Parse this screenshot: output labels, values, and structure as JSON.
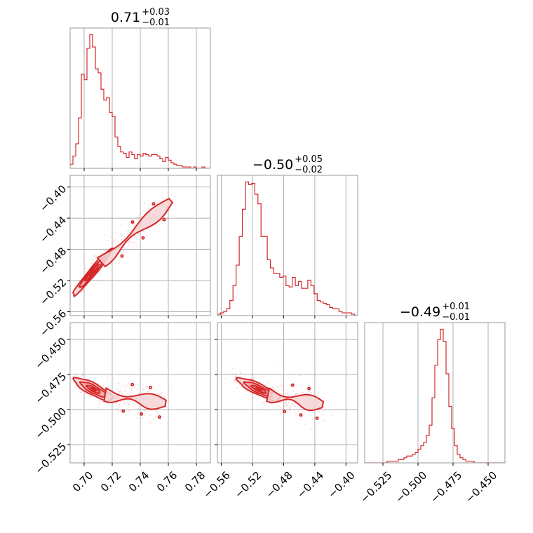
{
  "chart_data": {
    "type": "corner",
    "color": "#d62728",
    "fill_colors": [
      "#f6d4d5",
      "#eea7a9",
      "#e36d70"
    ],
    "grid": true,
    "parameters": [
      {
        "id": "p0",
        "median": "0.71",
        "plus": "+0.03",
        "minus": "−0.01",
        "range": [
          0.69,
          0.79
        ],
        "ticks": [
          0.7,
          0.72,
          0.74,
          0.76,
          0.78
        ],
        "tick_labels": [
          "0.70",
          "0.72",
          "0.74",
          "0.76",
          "0.78"
        ]
      },
      {
        "id": "p1",
        "median": "−0.50",
        "plus": "+0.05",
        "minus": "−0.02",
        "range": [
          -0.565,
          -0.385
        ],
        "ticks": [
          -0.56,
          -0.52,
          -0.48,
          -0.44,
          -0.4
        ],
        "tick_labels": [
          "−0.56",
          "−0.52",
          "−0.48",
          "−0.44",
          "−0.40"
        ]
      },
      {
        "id": "p2",
        "median": "−0.49",
        "plus": "+0.01",
        "minus": "−0.01",
        "range": [
          -0.538,
          -0.438
        ],
        "ticks": [
          -0.525,
          -0.5,
          -0.475,
          -0.45
        ],
        "tick_labels": [
          "−0.525",
          "−0.500",
          "−0.475",
          "−0.450"
        ]
      }
    ],
    "histograms": [
      {
        "param": "p0",
        "bins": [
          0.69,
          0.692,
          0.694,
          0.696,
          0.698,
          0.7,
          0.702,
          0.704,
          0.706,
          0.708,
          0.71,
          0.712,
          0.714,
          0.716,
          0.718,
          0.72,
          0.722,
          0.724,
          0.726,
          0.728,
          0.73,
          0.732,
          0.734,
          0.736,
          0.738,
          0.74,
          0.742,
          0.744,
          0.746,
          0.748,
          0.75,
          0.752,
          0.754,
          0.756,
          0.758,
          0.76,
          0.762,
          0.764,
          0.766,
          0.768,
          0.77,
          0.772,
          0.774,
          0.776,
          0.778,
          0.78,
          0.782,
          0.784,
          0.786,
          0.788,
          0.79
        ],
        "counts": [
          3,
          9,
          18,
          37,
          69,
          65,
          88,
          98,
          89,
          73,
          70,
          58,
          50,
          52,
          41,
          38,
          23,
          16,
          12,
          11,
          8,
          12,
          10,
          7,
          10,
          9,
          11,
          10,
          9,
          10,
          10,
          9,
          7,
          5,
          8,
          6,
          4,
          3,
          2,
          2,
          1,
          1,
          1,
          0,
          1,
          0,
          0,
          1,
          0,
          0
        ]
      },
      {
        "param": "p1",
        "bins": [
          -0.565,
          -0.561,
          -0.557,
          -0.553,
          -0.549,
          -0.545,
          -0.541,
          -0.537,
          -0.533,
          -0.529,
          -0.525,
          -0.521,
          -0.517,
          -0.513,
          -0.509,
          -0.505,
          -0.501,
          -0.497,
          -0.493,
          -0.489,
          -0.485,
          -0.481,
          -0.477,
          -0.473,
          -0.469,
          -0.465,
          -0.461,
          -0.457,
          -0.453,
          -0.449,
          -0.445,
          -0.441,
          -0.437,
          -0.433,
          -0.429,
          -0.425,
          -0.421,
          -0.417,
          -0.413,
          -0.409,
          -0.405,
          -0.401,
          -0.397,
          -0.393,
          -0.389,
          -0.385
        ],
        "counts": [
          1,
          2,
          3,
          5,
          11,
          22,
          37,
          58,
          78,
          98,
          96,
          97,
          89,
          82,
          58,
          58,
          41,
          35,
          31,
          31,
          28,
          29,
          22,
          21,
          28,
          22,
          25,
          20,
          20,
          26,
          22,
          16,
          11,
          10,
          9,
          8,
          6,
          5,
          5,
          3,
          2,
          2,
          2,
          1,
          0
        ]
      },
      {
        "param": "p2",
        "bins": [
          -0.538,
          -0.536,
          -0.534,
          -0.532,
          -0.53,
          -0.528,
          -0.526,
          -0.524,
          -0.522,
          -0.52,
          -0.518,
          -0.516,
          -0.514,
          -0.512,
          -0.51,
          -0.508,
          -0.506,
          -0.504,
          -0.502,
          -0.5,
          -0.498,
          -0.496,
          -0.494,
          -0.492,
          -0.49,
          -0.488,
          -0.486,
          -0.484,
          -0.482,
          -0.48,
          -0.478,
          -0.476,
          -0.474,
          -0.472,
          -0.47,
          -0.468,
          -0.466,
          -0.464,
          -0.462,
          -0.46,
          -0.458,
          -0.456,
          -0.454,
          -0.452,
          -0.45,
          -0.448,
          -0.446,
          -0.444,
          -0.442,
          -0.44,
          -0.438
        ],
        "counts": [
          0,
          0,
          0,
          0,
          0,
          0,
          0,
          0,
          1,
          1,
          1,
          1,
          2,
          2,
          3,
          4,
          4,
          5,
          6,
          8,
          10,
          12,
          16,
          22,
          38,
          57,
          72,
          78,
          71,
          52,
          33,
          20,
          10,
          5,
          3,
          2,
          1,
          1,
          1,
          0,
          0,
          0,
          0,
          0,
          0,
          0,
          0,
          0,
          0,
          0
        ]
      }
    ],
    "pairs": [
      {
        "x": "p0",
        "y": "p1",
        "rho": 0.97,
        "mean": [
          0.7055,
          -0.51
        ],
        "sd": [
          0.006,
          0.013
        ],
        "tail": {
          "from": [
            0.712,
            -0.496
          ],
          "to": [
            0.762,
            -0.418
          ],
          "width": 0.008
        }
      },
      {
        "x": "p0",
        "y": "p2",
        "rho": -0.82,
        "mean": [
          0.7065,
          -0.4855
        ],
        "sd": [
          0.006,
          0.0035
        ],
        "tail": {
          "from": [
            0.715,
            -0.489
          ],
          "to": [
            0.758,
            -0.496
          ],
          "width": 0.005
        }
      },
      {
        "x": "p1",
        "y": "p2",
        "rho": -0.85,
        "mean": [
          -0.512,
          -0.4855
        ],
        "sd": [
          0.012,
          0.0035
        ],
        "tail": {
          "from": [
            -0.5,
            -0.489
          ],
          "to": [
            -0.43,
            -0.497
          ],
          "width": 0.005
        }
      }
    ]
  }
}
